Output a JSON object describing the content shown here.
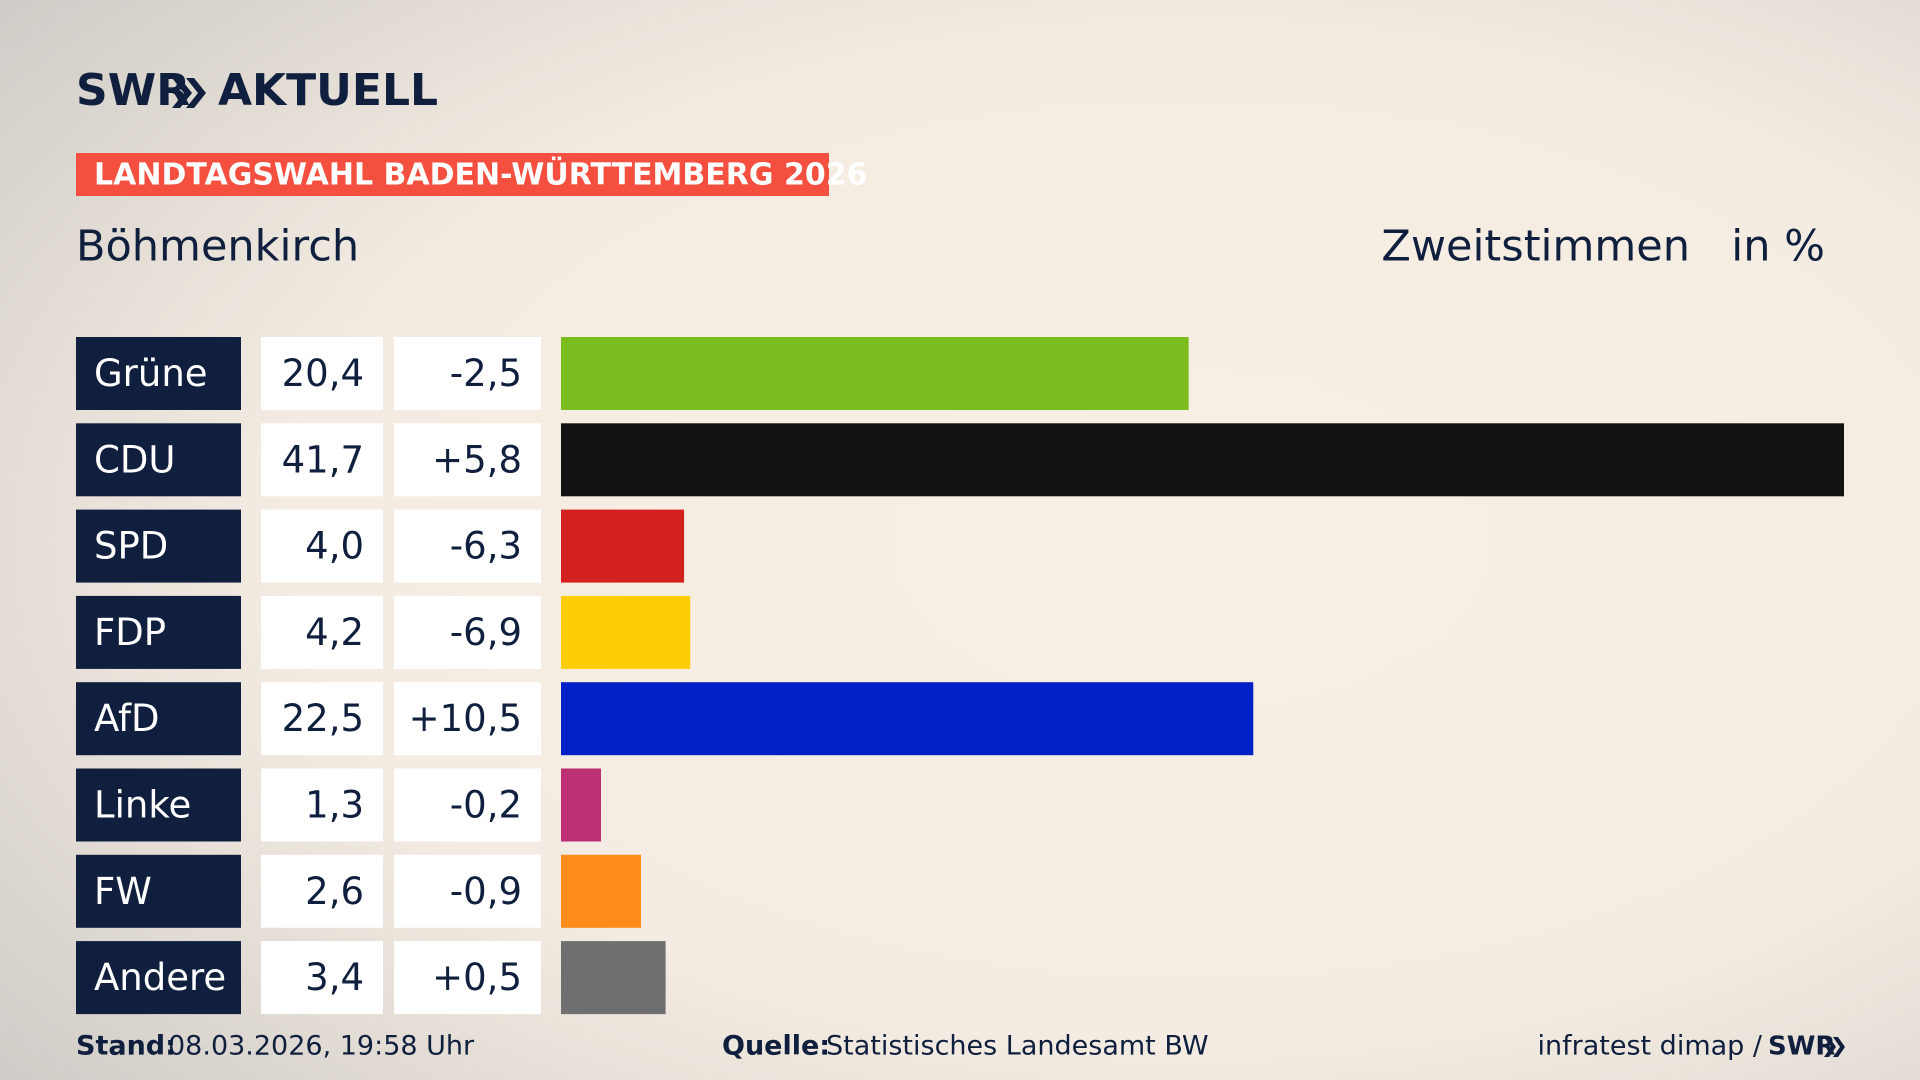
{
  "brand": {
    "name": "SWR",
    "product": "AKTUELL"
  },
  "banner": "LANDTAGSWAHL BADEN-WÜRTTEMBERG 2026",
  "chart_data": {
    "type": "bar",
    "orientation": "horizontal",
    "title": "Böhmenkirch",
    "measure": "Zweitstimmen",
    "unit": "in %",
    "categories": [
      "Grüne",
      "CDU",
      "SPD",
      "FDP",
      "AfD",
      "Linke",
      "FW",
      "Andere"
    ],
    "values": [
      20.4,
      41.7,
      4.0,
      4.2,
      22.5,
      1.3,
      2.6,
      3.4
    ],
    "value_labels": [
      "20,4",
      "41,7",
      "4,0",
      "4,2",
      "22,5",
      "1,3",
      "2,6",
      "3,4"
    ],
    "changes": [
      "-2,5",
      "+5,8",
      "-6,3",
      "-6,9",
      "+10,5",
      "-0,2",
      "-0,9",
      "+0,5"
    ],
    "colors": [
      "#7bbd1e",
      "#121212",
      "#d52020",
      "#ffcd05",
      "#0021c6",
      "#be3075",
      "#ff8c1a",
      "#6f6f71"
    ]
  },
  "footer": {
    "stand_label": "Stand:",
    "stand": "08.03.2026, 19:58 Uhr",
    "source_label": "Quelle:",
    "source": "Statistisches Landesamt BW",
    "credit": "infratest dimap /",
    "credit_logo": "SWR"
  }
}
